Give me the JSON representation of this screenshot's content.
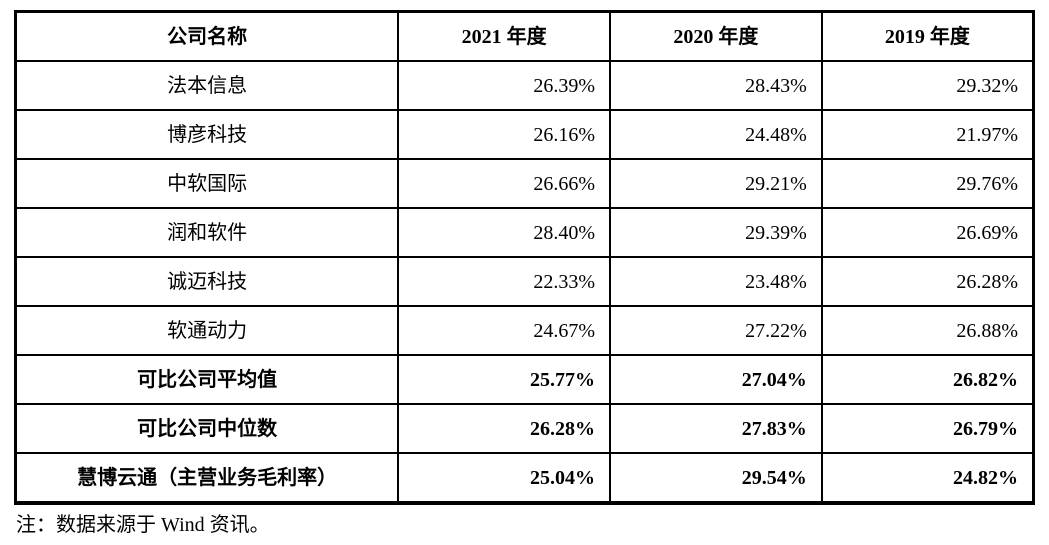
{
  "table": {
    "columns": [
      "公司名称",
      "2021 年度",
      "2020 年度",
      "2019 年度"
    ],
    "rows": [
      {
        "name": "法本信息",
        "values": [
          "26.39%",
          "28.43%",
          "29.32%"
        ],
        "bold": false
      },
      {
        "name": "博彦科技",
        "values": [
          "26.16%",
          "24.48%",
          "21.97%"
        ],
        "bold": false
      },
      {
        "name": "中软国际",
        "values": [
          "26.66%",
          "29.21%",
          "29.76%"
        ],
        "bold": false
      },
      {
        "name": "润和软件",
        "values": [
          "28.40%",
          "29.39%",
          "26.69%"
        ],
        "bold": false
      },
      {
        "name": "诚迈科技",
        "values": [
          "22.33%",
          "23.48%",
          "26.28%"
        ],
        "bold": false
      },
      {
        "name": "软通动力",
        "values": [
          "24.67%",
          "27.22%",
          "26.88%"
        ],
        "bold": false
      },
      {
        "name": "可比公司平均值",
        "values": [
          "25.77%",
          "27.04%",
          "26.82%"
        ],
        "bold": true
      },
      {
        "name": "可比公司中位数",
        "values": [
          "26.28%",
          "27.83%",
          "26.79%"
        ],
        "bold": true
      },
      {
        "name": "慧博云通（主营业务毛利率）",
        "values": [
          "25.04%",
          "29.54%",
          "24.82%"
        ],
        "bold": true
      }
    ],
    "footnote": "注：数据来源于 Wind 资讯。"
  }
}
